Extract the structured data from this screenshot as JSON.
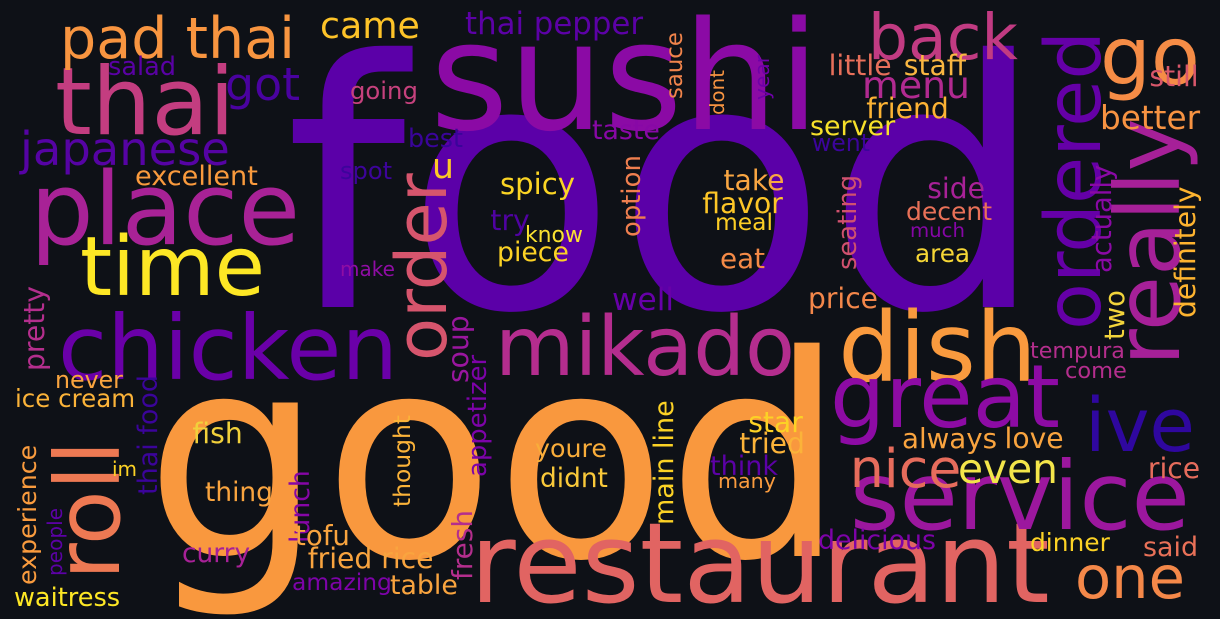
{
  "words": [
    {
      "text": "food",
      "color": "#5b00a8"
    },
    {
      "text": "good",
      "color": "#f9983e"
    },
    {
      "text": "sushi",
      "color": "#8b0aa5"
    },
    {
      "text": "restaurant",
      "color": "#e16462"
    },
    {
      "text": "place",
      "color": "#a82296"
    },
    {
      "text": "thai",
      "color": "#c33d80"
    },
    {
      "text": "chicken",
      "color": "#6a00a8"
    },
    {
      "text": "time",
      "color": "#fde725"
    },
    {
      "text": "service",
      "color": "#9c179e"
    },
    {
      "text": "mikado",
      "color": "#b42d8e"
    },
    {
      "text": "dish",
      "color": "#f99a3e"
    },
    {
      "text": "great",
      "color": "#8d0ba4"
    },
    {
      "text": "really",
      "color": "#a62098"
    },
    {
      "text": "ordered",
      "color": "#6500a7"
    },
    {
      "text": "roll",
      "color": "#ed7953"
    },
    {
      "text": "order",
      "color": "#d6556d"
    },
    {
      "text": "pad thai",
      "color": "#f89540"
    },
    {
      "text": "go",
      "color": "#f58c46"
    },
    {
      "text": "one",
      "color": "#f48849"
    },
    {
      "text": "ive",
      "color": "#2f079f"
    },
    {
      "text": "back",
      "color": "#c13b82"
    },
    {
      "text": "japanese",
      "color": "#5603a4"
    },
    {
      "text": "nice",
      "color": "#e66c5c"
    },
    {
      "text": "even",
      "color": "#f3e54a"
    },
    {
      "text": "menu",
      "color": "#b12a90"
    },
    {
      "text": "came",
      "color": "#fdc328"
    },
    {
      "text": "got",
      "color": "#4a02a0"
    },
    {
      "text": "thai pepper",
      "color": "#5c01a6"
    },
    {
      "text": "u",
      "color": "#fdca26"
    },
    {
      "text": "salad",
      "color": "#5a01a5"
    },
    {
      "text": "going",
      "color": "#c6417d"
    },
    {
      "text": "excellent",
      "color": "#f99a3d"
    },
    {
      "text": "spot",
      "color": "#3d049b"
    },
    {
      "text": "best",
      "color": "#3a049a"
    },
    {
      "text": "taste",
      "color": "#8808a6"
    },
    {
      "text": "sauce",
      "color": "#f1844b"
    },
    {
      "text": "dont",
      "color": "#f79441"
    },
    {
      "text": "year",
      "color": "#6e00a8"
    },
    {
      "text": "little",
      "color": "#e76f5a"
    },
    {
      "text": "staff",
      "color": "#f9b641"
    },
    {
      "text": "friend",
      "color": "#fcb334"
    },
    {
      "text": "server",
      "color": "#f7e12a"
    },
    {
      "text": "went",
      "color": "#3c049b"
    },
    {
      "text": "better",
      "color": "#f79342"
    },
    {
      "text": "still",
      "color": "#d8576b"
    },
    {
      "text": "spicy",
      "color": "#fbd524"
    },
    {
      "text": "take",
      "color": "#f9a642"
    },
    {
      "text": "flavor",
      "color": "#fdc627"
    },
    {
      "text": "meal",
      "color": "#fcce25"
    },
    {
      "text": "side",
      "color": "#a72197"
    },
    {
      "text": "decent",
      "color": "#e97158"
    },
    {
      "text": "much",
      "color": "#8606a6"
    },
    {
      "text": "area",
      "color": "#f6d736"
    },
    {
      "text": "option",
      "color": "#ef7f4f"
    },
    {
      "text": "know",
      "color": "#f9e131"
    },
    {
      "text": "try",
      "color": "#5002a2"
    },
    {
      "text": "piece",
      "color": "#fcd225"
    },
    {
      "text": "eat",
      "color": "#f48a47"
    },
    {
      "text": "make",
      "color": "#8f0da4"
    },
    {
      "text": "seating",
      "color": "#d0516f"
    },
    {
      "text": "actually",
      "color": "#8a09a5"
    },
    {
      "text": "definitely",
      "color": "#fdb32f"
    },
    {
      "text": "two",
      "color": "#f2d43b"
    },
    {
      "text": "well",
      "color": "#6700a8"
    },
    {
      "text": "price",
      "color": "#f3874a"
    },
    {
      "text": "pretty",
      "color": "#b42e8d"
    },
    {
      "text": "soup",
      "color": "#9a169f"
    },
    {
      "text": "tempura",
      "color": "#b42e8d"
    },
    {
      "text": "come",
      "color": "#b42e8d"
    },
    {
      "text": "never",
      "color": "#f9a43f"
    },
    {
      "text": "ice cream",
      "color": "#fbb339"
    },
    {
      "text": "thai food",
      "color": "#3b049a"
    },
    {
      "text": "appetizer",
      "color": "#7d03a8"
    },
    {
      "text": "star",
      "color": "#fcd225"
    },
    {
      "text": "tried",
      "color": "#fbb339"
    },
    {
      "text": "always",
      "color": "#f9a43f"
    },
    {
      "text": "love",
      "color": "#f9a43f"
    },
    {
      "text": "fish",
      "color": "#f1d03b"
    },
    {
      "text": "youre",
      "color": "#f9ad3a"
    },
    {
      "text": "think",
      "color": "#5c01a6"
    },
    {
      "text": "many",
      "color": "#f99b3e"
    },
    {
      "text": "rice",
      "color": "#e66c5c"
    },
    {
      "text": "experience",
      "color": "#f99b3e"
    },
    {
      "text": "im",
      "color": "#fcd225"
    },
    {
      "text": "thing",
      "color": "#f9a43f"
    },
    {
      "text": "lunch",
      "color": "#8606a6"
    },
    {
      "text": "thought",
      "color": "#fbb339"
    },
    {
      "text": "main line",
      "color": "#fcd225"
    },
    {
      "text": "didnt",
      "color": "#f9c93a"
    },
    {
      "text": "people",
      "color": "#5c01a6"
    },
    {
      "text": "tofu",
      "color": "#f9a43f"
    },
    {
      "text": "fresh",
      "color": "#b42e8d"
    },
    {
      "text": "curry",
      "color": "#a72197"
    },
    {
      "text": "fried rice",
      "color": "#f9a43f"
    },
    {
      "text": "delicious",
      "color": "#7d03a8"
    },
    {
      "text": "dinner",
      "color": "#fcd225"
    },
    {
      "text": "said",
      "color": "#e97158"
    },
    {
      "text": "amazing",
      "color": "#7d03a8"
    },
    {
      "text": "table",
      "color": "#f9a43f"
    },
    {
      "text": "waitress",
      "color": "#fde725"
    }
  ]
}
